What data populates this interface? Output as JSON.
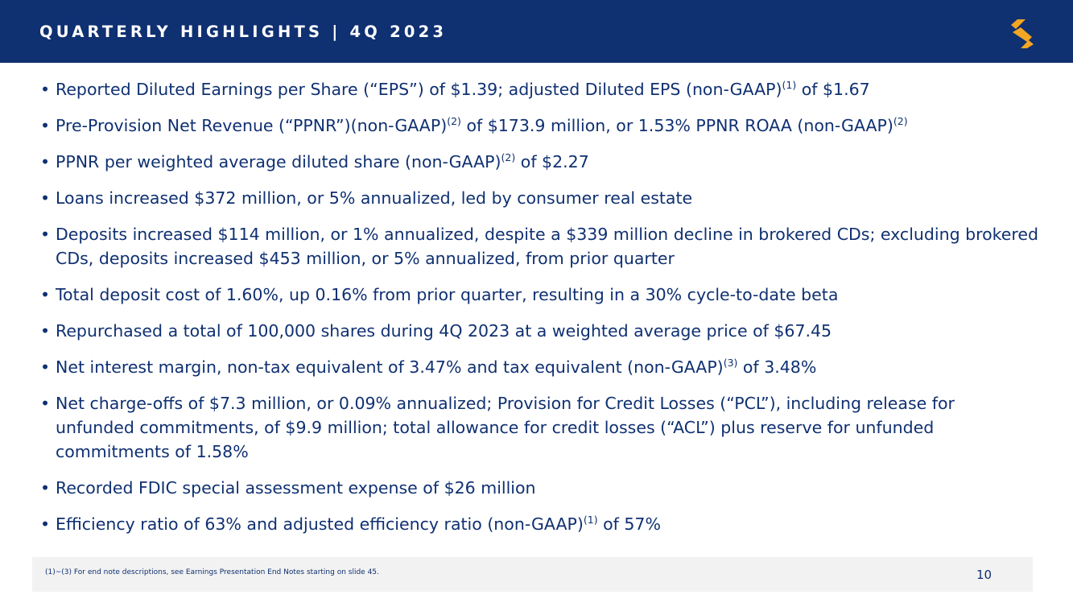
{
  "header": {
    "title": "QUARTERLY HIGHLIGHTS | 4Q 2023"
  },
  "colors": {
    "navy": "#0f3071",
    "gold": "#f5a623",
    "footer_bg": "#f2f2f2"
  },
  "logo": {
    "icon": "company-s-logo-icon"
  },
  "bullets": [
    {
      "bullet": "•",
      "a": "Reported Diluted Earnings per Share (“EPS”) of $1.39; adjusted Diluted EPS (non-GAAP)",
      "sup1": "(1)",
      "b": " of $1.67"
    },
    {
      "bullet": "•",
      "a": "Pre-Provision Net Revenue (“PPNR”)(non-GAAP)",
      "sup1": "(2)",
      "b": " of $173.9 million, or 1.53% PPNR ROAA (non-GAAP)",
      "sup2": "(2)"
    },
    {
      "bullet": "•",
      "a": "PPNR per weighted average diluted share (non-GAAP)",
      "sup1": "(2)",
      "b": " of $2.27"
    },
    {
      "bullet": "•",
      "a": "Loans increased $372 million, or 5% annualized, led by consumer real estate"
    },
    {
      "bullet": "•",
      "a": "Deposits increased $114 million, or 1% annualized, despite a $339 million decline in brokered CDs; excluding brokered CDs, deposits increased $453 million, or 5% annualized, from prior quarter"
    },
    {
      "bullet": "•",
      "a": "Total deposit cost of 1.60%, up 0.16% from prior quarter, resulting in a 30% cycle-to-date beta"
    },
    {
      "bullet": "•",
      "a": "Repurchased a total of 100,000 shares during 4Q 2023 at a weighted average price of $67.45"
    },
    {
      "bullet": "•",
      "a": "Net interest margin, non-tax equivalent of 3.47% and tax equivalent (non-GAAP)",
      "sup1": "(3)",
      "b": " of 3.48%"
    },
    {
      "bullet": "•",
      "a": "Net charge-offs of $7.3 million, or 0.09% annualized; Provision for Credit Losses (“PCL”), including release for unfunded commitments, of $9.9 million; total allowance for credit losses (“ACL”) plus reserve for unfunded commitments of 1.58%"
    },
    {
      "bullet": "•",
      "a": "Recorded FDIC special assessment expense of $26 million"
    },
    {
      "bullet": "•",
      "a": "Efficiency ratio of 63% and adjusted efficiency ratio (non-GAAP)",
      "sup1": "(1)",
      "b": " of 57%"
    }
  ],
  "footer": {
    "footnote": "(1)~(3)  For end note descriptions, see Earnings Presentation End Notes starting on slide 45.",
    "page_number": "10"
  }
}
